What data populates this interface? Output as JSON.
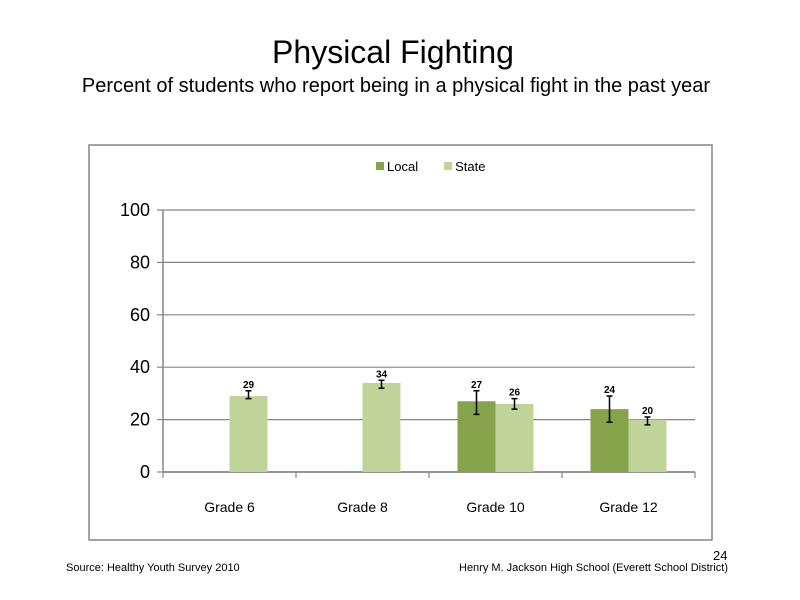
{
  "slide": {
    "title": "Physical Fighting",
    "subtitle": "Percent of students who report being in a physical fight in the past year",
    "source": "Source: Healthy Youth Survey 2010",
    "school": "Henry M. Jackson High School (Everett School District)",
    "page_number": "24"
  },
  "colors": {
    "local": "#86a24b",
    "state": "#c0d49a",
    "gridline": "#868686",
    "frame": "#868686"
  },
  "chart_data": {
    "type": "bar",
    "title": "",
    "xlabel": "",
    "ylabel": "",
    "categories": [
      "Grade 6",
      "Grade 8",
      "Grade 10",
      "Grade 12"
    ],
    "ylim": [
      0,
      100
    ],
    "yticks": [
      0,
      20,
      40,
      60,
      80,
      100
    ],
    "grid": true,
    "legend": "top-center",
    "error_bars": true,
    "series": [
      {
        "name": "Local",
        "values": [
          null,
          null,
          27,
          24
        ],
        "labels": [
          "",
          "",
          "27",
          "24"
        ],
        "error_low": [
          null,
          null,
          22,
          19
        ],
        "error_high": [
          null,
          null,
          31,
          29
        ]
      },
      {
        "name": "State",
        "values": [
          29,
          34,
          26,
          20
        ],
        "labels": [
          "29",
          "34",
          "26",
          "20"
        ],
        "error_low": [
          28,
          32,
          24,
          18
        ],
        "error_high": [
          31,
          35,
          28,
          21
        ]
      }
    ]
  }
}
